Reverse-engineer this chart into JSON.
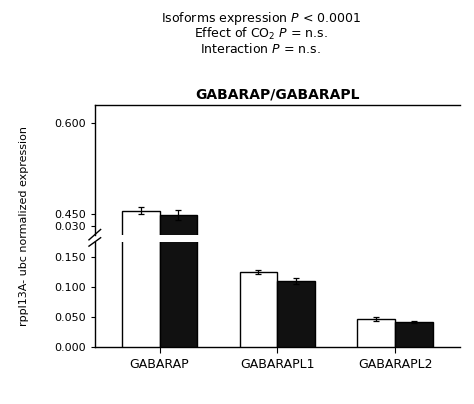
{
  "title_above": [
    "Isoforms expression $P$ < 0.0001",
    "Effect of CO$_2$ $P$ = n.s.",
    "Interaction $P$ = n.s."
  ],
  "chart_title": "GABARAP/GABARAPL",
  "groups": [
    "GABARAP",
    "GABARAPL1",
    "GABARAPL2"
  ],
  "white_bars": [
    0.455,
    0.125,
    0.047
  ],
  "black_bars": [
    0.448,
    0.11,
    0.042
  ],
  "white_errors": [
    0.006,
    0.004,
    0.003
  ],
  "black_errors": [
    0.008,
    0.005,
    0.002
  ],
  "ylabel": "rppl13A- ubc normalized expression",
  "bar_width": 0.32,
  "white_color": "#ffffff",
  "black_color": "#111111",
  "edge_color": "#000000",
  "background_color": "#ffffff",
  "lower_ylim": [
    0.0,
    0.175
  ],
  "upper_ylim": [
    0.415,
    0.63
  ],
  "lower_yticks": [
    0.0,
    0.05,
    0.1,
    0.15
  ],
  "lower_yticklabels": [
    "0.000",
    "0.050",
    "0.100",
    "0.150"
  ],
  "upper_yticks": [
    0.45,
    0.6
  ],
  "upper_yticklabels": [
    "0.450",
    "0.600"
  ],
  "upper_extra_ticks": [
    0.03
  ],
  "upper_extra_labels": [
    "0.030"
  ]
}
